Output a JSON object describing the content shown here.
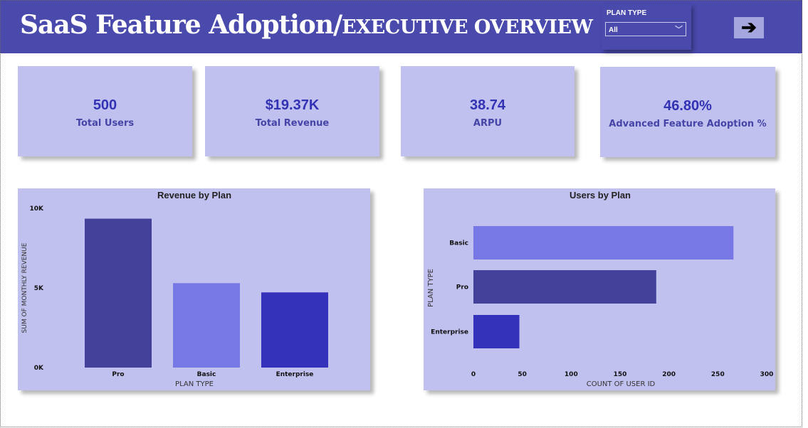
{
  "header": {
    "title_main": "SaaS Feature Adoption/",
    "title_sub": "EXECUTIVE OVERVIEW"
  },
  "slicer": {
    "label": "PLAN TYPE",
    "value": "All",
    "icon": "chevron-down-icon"
  },
  "nav": {
    "icon": "arrow-right-icon",
    "glyph": "🡒"
  },
  "kpis": [
    {
      "value": "500",
      "label": "Total Users"
    },
    {
      "value": "$19.37K",
      "label": "Total Revenue"
    },
    {
      "value": "38.74",
      "label": "ARPU"
    },
    {
      "value": "46.80%",
      "label": "Advanced Feature Adoption %"
    }
  ],
  "colors": {
    "header": "#4a4aad",
    "card": "#c1c1ef",
    "Pro": "#43419a",
    "Basic": "#7777e6",
    "Enterprise": "#3432bb"
  },
  "chart_data": [
    {
      "type": "bar",
      "title": "Revenue by Plan",
      "xlabel": "PLAN TYPE",
      "ylabel": "SUM OF MONTHLY REVENUE",
      "categories": [
        "Pro",
        "Basic",
        "Enterprise"
      ],
      "values": [
        9350,
        5300,
        4720
      ],
      "ylim": [
        0,
        10000
      ],
      "yticks": [
        0,
        5000,
        10000
      ],
      "ytick_labels": [
        "0K",
        "5K",
        "10K"
      ],
      "grid": false
    },
    {
      "type": "bar",
      "orientation": "horizontal",
      "title": "Users by Plan",
      "xlabel": "COUNT OF USER ID",
      "ylabel": "PLAN TYPE",
      "categories": [
        "Basic",
        "Pro",
        "Enterprise"
      ],
      "values": [
        266,
        187,
        47
      ],
      "xlim": [
        0,
        300
      ],
      "xticks": [
        0,
        50,
        100,
        150,
        200,
        250,
        300
      ],
      "xtick_labels": [
        "0",
        "50",
        "100",
        "150",
        "200",
        "250",
        "300"
      ],
      "grid": false
    }
  ]
}
